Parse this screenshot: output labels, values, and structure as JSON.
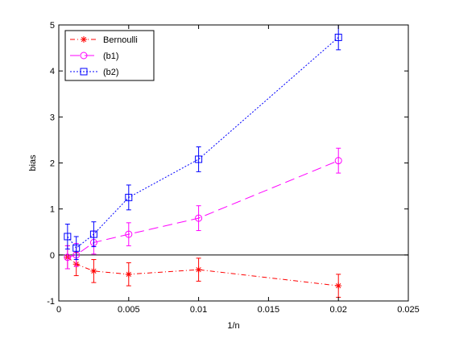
{
  "chart_data": {
    "type": "line",
    "xlabel": "1/n",
    "ylabel": "bias",
    "xlim": [
      0,
      0.025
    ],
    "ylim": [
      -1,
      5
    ],
    "xticks": [
      0,
      0.005,
      0.01,
      0.015,
      0.02,
      0.025
    ],
    "xtick_labels": [
      "0",
      "0.005",
      "0.01",
      "0.015",
      "0.02",
      "0.025"
    ],
    "yticks": [
      -1,
      0,
      1,
      2,
      3,
      4,
      5
    ],
    "ytick_labels": [
      "-1",
      "0",
      "1",
      "2",
      "3",
      "4",
      "5"
    ],
    "grid": false,
    "zero_line": true,
    "legend_position": "top-left",
    "series": [
      {
        "name": "Bernoulli",
        "color": "#ff0000",
        "marker": "star",
        "dash": "dash-dot",
        "x": [
          0.000625,
          0.00125,
          0.0025,
          0.005,
          0.01,
          0.02
        ],
        "y": [
          -0.05,
          -0.2,
          -0.35,
          -0.42,
          -0.32,
          -0.67
        ],
        "err": [
          0.25,
          0.25,
          0.25,
          0.25,
          0.25,
          0.25
        ]
      },
      {
        "name": "(b1)",
        "color": "#ff00ff",
        "marker": "circle",
        "dash": "long-dash",
        "x": [
          0.000625,
          0.00125,
          0.0025,
          0.005,
          0.01,
          0.02
        ],
        "y": [
          -0.05,
          0.0,
          0.27,
          0.45,
          0.8,
          2.05
        ],
        "err": [
          0.25,
          0.25,
          0.25,
          0.25,
          0.27,
          0.27
        ]
      },
      {
        "name": "(b2)",
        "color": "#0000ff",
        "marker": "square",
        "dash": "dotted",
        "x": [
          0.000625,
          0.00125,
          0.0025,
          0.005,
          0.01,
          0.02
        ],
        "y": [
          0.4,
          0.15,
          0.45,
          1.25,
          2.08,
          4.73
        ],
        "err": [
          0.27,
          0.25,
          0.27,
          0.27,
          0.27,
          0.27
        ]
      }
    ]
  }
}
